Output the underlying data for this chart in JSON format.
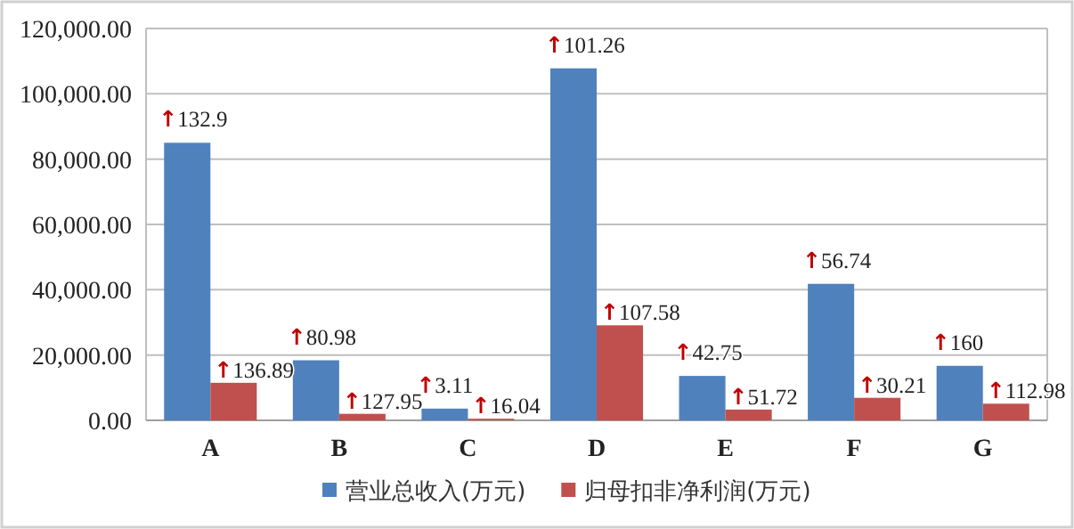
{
  "chart_data": {
    "type": "bar",
    "categories": [
      "A",
      "B",
      "C",
      "D",
      "E",
      "F",
      "G"
    ],
    "series": [
      {
        "name": "营业总收入(万元)",
        "color": "#4f81bd",
        "values": [
          85000,
          18400,
          3600,
          107800,
          13600,
          41800,
          16700
        ]
      },
      {
        "name": "归母扣非净利润(万元)",
        "color": "#c0504d",
        "values": [
          11500,
          2000,
          500,
          29100,
          3300,
          6900,
          5100
        ]
      }
    ],
    "annotations": [
      {
        "text": "↑132.9",
        "x": "A",
        "y": 85000
      },
      {
        "text": "↑136.89",
        "x": "A",
        "y": 11500
      },
      {
        "text": "↑80.98",
        "x": "B",
        "y": 18400
      },
      {
        "text": "↑127.95",
        "x": "B",
        "y": 2000
      },
      {
        "text": "↑3.11",
        "x": "C",
        "y": 3600
      },
      {
        "text": "↑16.04",
        "x": "C",
        "y": 500
      },
      {
        "text": "↑101.26",
        "x": "D",
        "y": 107800
      },
      {
        "text": "↑107.58",
        "x": "D",
        "y": 29100
      },
      {
        "text": "↑42.75",
        "x": "E",
        "y": 13600
      },
      {
        "text": "↑51.72",
        "x": "E",
        "y": 3300
      },
      {
        "text": "↑56.74",
        "x": "F",
        "y": 41800
      },
      {
        "text": "↑30.21",
        "x": "F",
        "y": 6900
      },
      {
        "text": "↑160",
        "x": "G",
        "y": 16700
      },
      {
        "text": "↑112.98",
        "x": "G",
        "y": 5100
      }
    ],
    "ylim": [
      0,
      120000
    ],
    "yticks": [
      {
        "value": 0,
        "label": "0.00"
      },
      {
        "value": 20000,
        "label": "20,000.00"
      },
      {
        "value": 40000,
        "label": "40,000.00"
      },
      {
        "value": 60000,
        "label": "60,000.00"
      },
      {
        "value": 80000,
        "label": "80,000.00"
      },
      {
        "value": 100000,
        "label": "100,000.00"
      },
      {
        "value": 120000,
        "label": "120,000.00"
      }
    ],
    "grid": "y",
    "legend": "bottom"
  }
}
